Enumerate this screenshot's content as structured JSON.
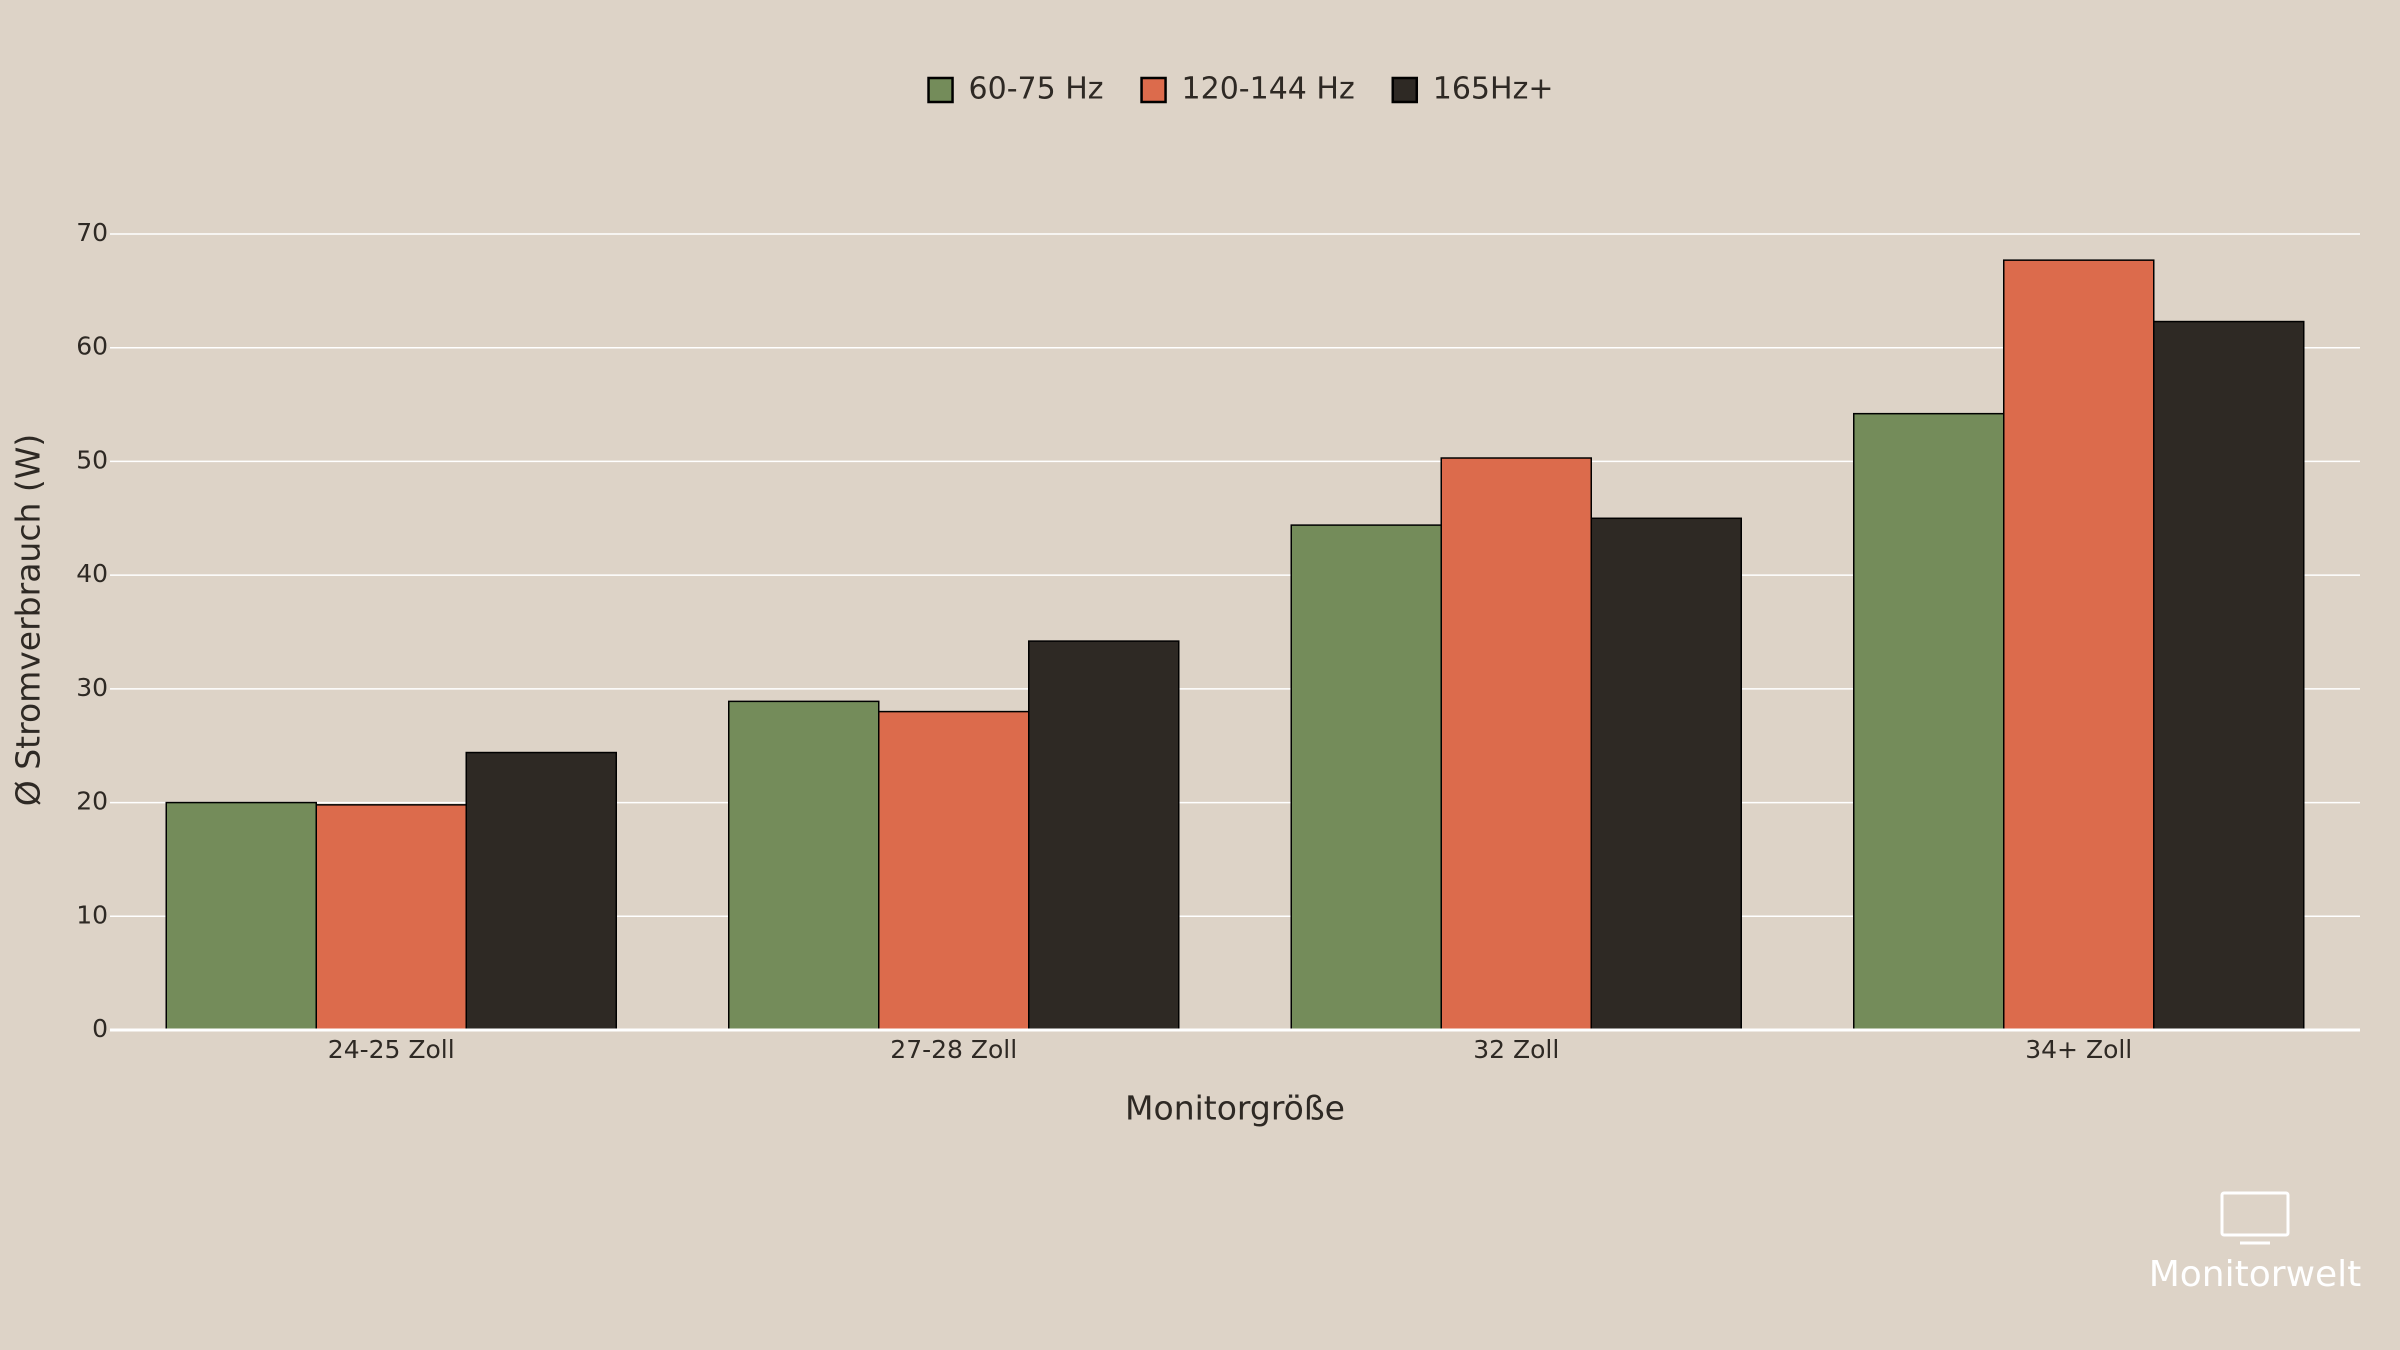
{
  "chart_data": {
    "type": "bar",
    "x_label": "Monitorgröße",
    "y_label": "Ø Stromverbrauch (W)",
    "categories": [
      "24-25 Zoll",
      "27-28 Zoll",
      "32 Zoll",
      "34+ Zoll"
    ],
    "series": [
      {
        "name": "60-75 Hz",
        "color": "#748c5a",
        "values": [
          20.0,
          28.9,
          44.4,
          54.2
        ]
      },
      {
        "name": "120-144 Hz",
        "color": "#dc6b4c",
        "values": [
          19.8,
          28.0,
          50.3,
          67.7
        ]
      },
      {
        "name": "165Hz+",
        "color": "#2e2924",
        "values": [
          24.4,
          34.2,
          45.0,
          62.3
        ]
      }
    ],
    "ylim": [
      0,
      70
    ],
    "yticks": [
      0,
      10,
      20,
      30,
      40,
      50,
      60,
      70
    ],
    "grid": true,
    "legend_position": "top",
    "watermark": "Monitorwelt"
  }
}
